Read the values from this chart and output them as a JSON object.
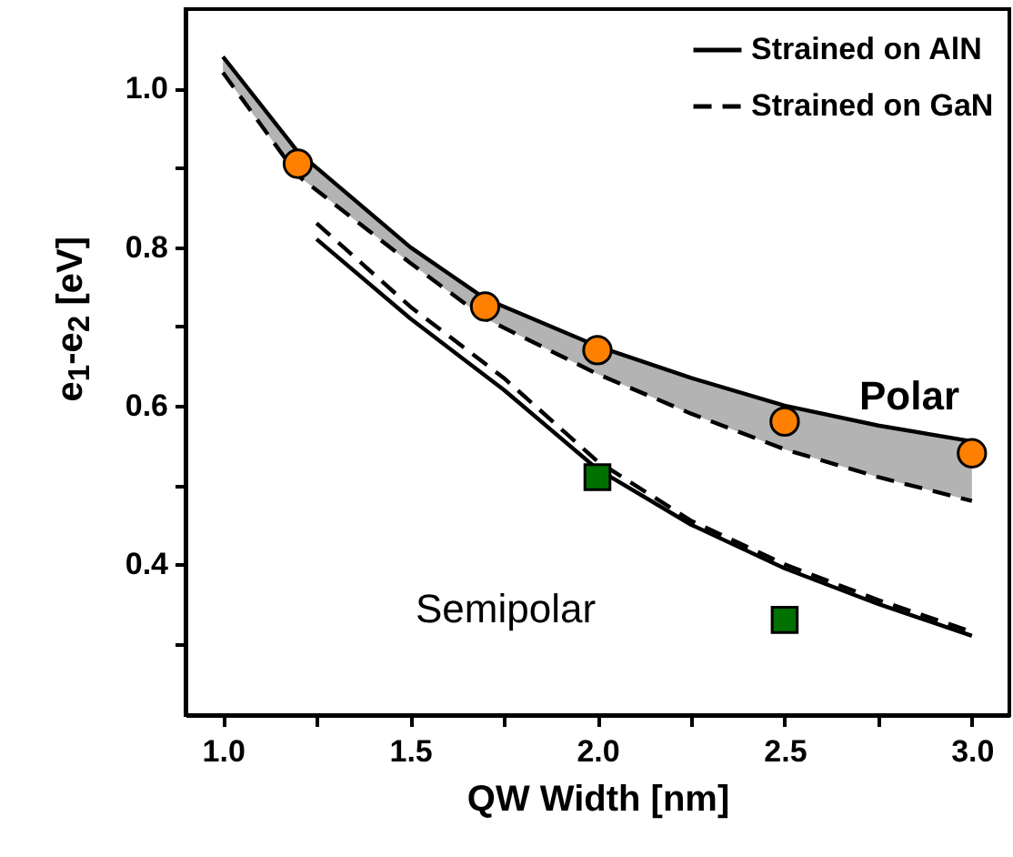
{
  "chart_data": {
    "type": "line",
    "xlabel": "QW Width [nm]",
    "ylabel": "e$_{1}$-e$_{2}$ [eV]",
    "xlim": [
      0.9,
      3.1
    ],
    "ylim": [
      0.21,
      1.1
    ],
    "xticks": [
      {
        "value": 1,
        "label": "1.0"
      },
      {
        "value": 1.25,
        "label": null
      },
      {
        "value": 1.5,
        "label": "1.5"
      },
      {
        "value": 1.75,
        "label": null
      },
      {
        "value": 2,
        "label": "2.0"
      },
      {
        "value": 2.25,
        "label": null
      },
      {
        "value": 2.5,
        "label": "2.5"
      },
      {
        "value": 2.75,
        "label": null
      },
      {
        "value": 3,
        "label": "3.0"
      }
    ],
    "yticks": [
      {
        "value": 0.3,
        "label": null
      },
      0.4,
      {
        "value": 0.5,
        "label": null
      },
      0.6,
      {
        "value": 0.7,
        "label": null
      },
      0.8,
      {
        "value": 0.9,
        "label": null
      },
      {
        "value": 1,
        "label": "1.0"
      }
    ],
    "grid": false,
    "legend": "top right",
    "series": [
      {
        "name": "Strained on AlN",
        "type": "line",
        "line_style": "solid",
        "color": "#000000",
        "x": [
          1.0,
          1.2,
          1.5,
          1.7,
          2.0,
          2.25,
          2.5,
          2.75,
          3.0
        ],
        "values": [
          1.04,
          0.92,
          0.8,
          0.735,
          0.675,
          0.635,
          0.6,
          0.575,
          0.555
        ],
        "lower": [
          1.02,
          0.89,
          0.78,
          0.71,
          0.64,
          0.59,
          0.545,
          0.51,
          0.48
        ],
        "upper": [
          1.04,
          0.92,
          0.8,
          0.735,
          0.675,
          0.635,
          0.6,
          0.575,
          0.555
        ]
      },
      {
        "name": "Strained on GaN",
        "type": "line",
        "line_style": "dashed",
        "color": "#000000",
        "x": [
          1.0,
          1.2,
          1.5,
          1.7,
          2.0,
          2.25,
          2.5,
          2.75,
          3.0
        ],
        "values": [
          1.02,
          0.89,
          0.78,
          0.71,
          0.64,
          0.59,
          0.545,
          0.51,
          0.48
        ]
      },
      {
        "type": "line",
        "line_style": "solid",
        "color": "#000000",
        "x": [
          1.25,
          1.5,
          1.75,
          2.0,
          2.25,
          2.5,
          2.75,
          3.0
        ],
        "values": [
          0.81,
          0.71,
          0.62,
          0.52,
          0.45,
          0.395,
          0.35,
          0.31
        ]
      },
      {
        "type": "line",
        "line_style": "dashed",
        "color": "#000000",
        "x": [
          1.25,
          1.5,
          1.75,
          2.0,
          2.25,
          2.5,
          2.75,
          3.0
        ],
        "values": [
          0.83,
          0.725,
          0.635,
          0.53,
          0.455,
          0.4,
          0.355,
          0.315
        ]
      },
      {
        "type": "scatter",
        "marker": "circle",
        "color": "#ff8000",
        "x": [
          1.2,
          1.7,
          2.0,
          2.5,
          3.0
        ],
        "values": [
          0.905,
          0.725,
          0.67,
          0.58,
          0.54
        ]
      },
      {
        "type": "scatter",
        "marker": "square",
        "color": "#007000",
        "x": [
          2.0,
          2.5
        ],
        "values": [
          0.51,
          0.33
        ]
      }
    ],
    "annotations": [
      "Polar",
      "Semipolar"
    ]
  }
}
